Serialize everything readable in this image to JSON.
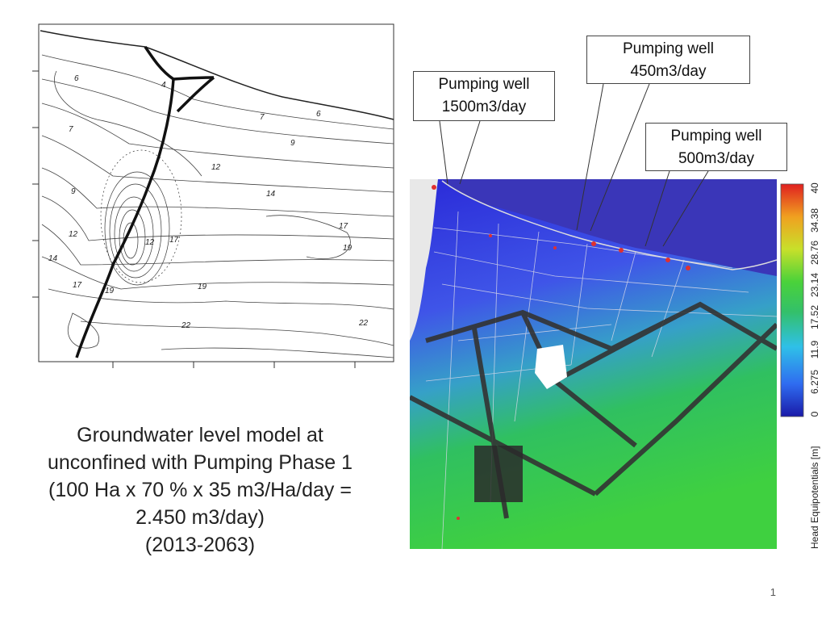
{
  "callouts": [
    {
      "line1": "Pumping well",
      "line2": "1500m3/day"
    },
    {
      "line1": "Pumping well",
      "line2": "450m3/day"
    },
    {
      "line1": "Pumping well",
      "line2": "500m3/day"
    }
  ],
  "caption": {
    "lines": [
      "Groundwater level model at",
      "unconfined with Pumping Phase 1",
      "(100 Ha x 70 % x 35 m3/Ha/day =",
      "2.450 m3/day)",
      "(2013-2063)"
    ]
  },
  "contour_labels": [
    "6",
    "6",
    "7",
    "6",
    "7",
    "9",
    "9",
    "12",
    "14",
    "12",
    "12",
    "17",
    "19",
    "19",
    "14",
    "17",
    "19",
    "22",
    "22",
    "4"
  ],
  "colorbar": {
    "title": "Head Equipotentials [m]",
    "ticks": [
      "0",
      "6.275",
      "11.9",
      "17.52",
      "23.14",
      "28.76",
      "34.38",
      "40"
    ],
    "colors": [
      "#1a1aa8",
      "#2f6cf0",
      "#2fc0e8",
      "#33c06a",
      "#4ad23a",
      "#c8e02a",
      "#f0a020",
      "#e02020"
    ]
  },
  "slide_number": "1"
}
